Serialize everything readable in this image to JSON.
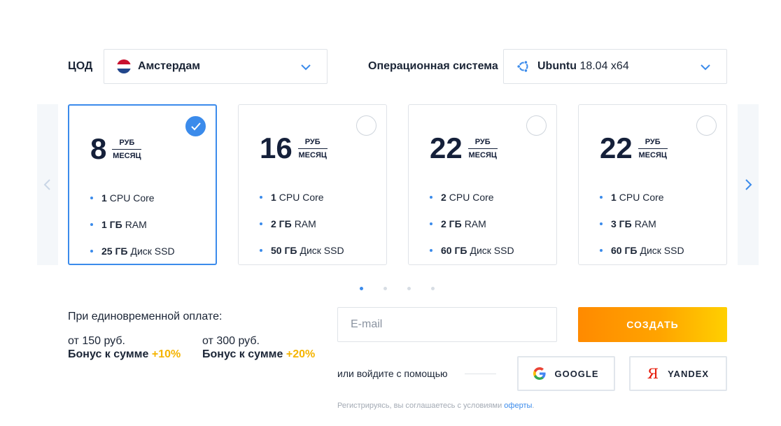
{
  "datacenter": {
    "label": "ЦОД",
    "selected": "Амстердам",
    "flag_colors": [
      "#c8102e",
      "#ffffff",
      "#21468b"
    ]
  },
  "os": {
    "label": "Операционная система",
    "name": "Ubuntu",
    "version": "18.04 x64",
    "icon": "ubuntu-icon"
  },
  "carousel": {
    "prev_icon": "chevron-left-icon",
    "next_icon": "chevron-right-icon",
    "pages": 4,
    "active_page": 1
  },
  "plans": [
    {
      "price": "8",
      "unit_top": "РУБ",
      "unit_bottom": "МЕСЯЦ",
      "selected": true,
      "specs": [
        {
          "strong": "1",
          "text": "CPU Core"
        },
        {
          "strong": "1 ГБ",
          "text": "RAM"
        },
        {
          "strong": "25 ГБ",
          "text": "Диск SSD"
        }
      ]
    },
    {
      "price": "16",
      "unit_top": "РУБ",
      "unit_bottom": "МЕСЯЦ",
      "selected": false,
      "specs": [
        {
          "strong": "1",
          "text": "CPU Core"
        },
        {
          "strong": "2 ГБ",
          "text": "RAM"
        },
        {
          "strong": "50 ГБ",
          "text": "Диск SSD"
        }
      ]
    },
    {
      "price": "22",
      "unit_top": "РУБ",
      "unit_bottom": "МЕСЯЦ",
      "selected": false,
      "specs": [
        {
          "strong": "2",
          "text": "CPU Core"
        },
        {
          "strong": "2 ГБ",
          "text": "RAM"
        },
        {
          "strong": "60 ГБ",
          "text": "Диск SSD"
        }
      ]
    },
    {
      "price": "22",
      "unit_top": "РУБ",
      "unit_bottom": "МЕСЯЦ",
      "selected": false,
      "specs": [
        {
          "strong": "1",
          "text": "CPU Core"
        },
        {
          "strong": "3 ГБ",
          "text": "RAM"
        },
        {
          "strong": "60 ГБ",
          "text": "Диск SSD"
        }
      ]
    }
  ],
  "bonus": {
    "title": "При единовременной оплате:",
    "tiers": [
      {
        "threshold": "от 150 руб.",
        "label": "Бонус к сумме",
        "pct": "+10%"
      },
      {
        "threshold": "от 300 руб.",
        "label": "Бонус к сумме",
        "pct": "+20%"
      }
    ]
  },
  "signup": {
    "email_placeholder": "E-mail",
    "create_label": "СОЗДАТЬ",
    "or_text": "или войдите с помощью",
    "google_label": "GOOGLE",
    "yandex_label": "YANDEX",
    "yandex_glyph": "Я",
    "terms_text": "Регистрируясь, вы соглашаетесь с условиями",
    "terms_link": "оферты",
    "terms_end": "."
  },
  "colors": {
    "accent": "#3b8beb",
    "bonus": "#f5b400",
    "create_gradient_start": "#ff8a00",
    "create_gradient_end": "#ffd000"
  }
}
